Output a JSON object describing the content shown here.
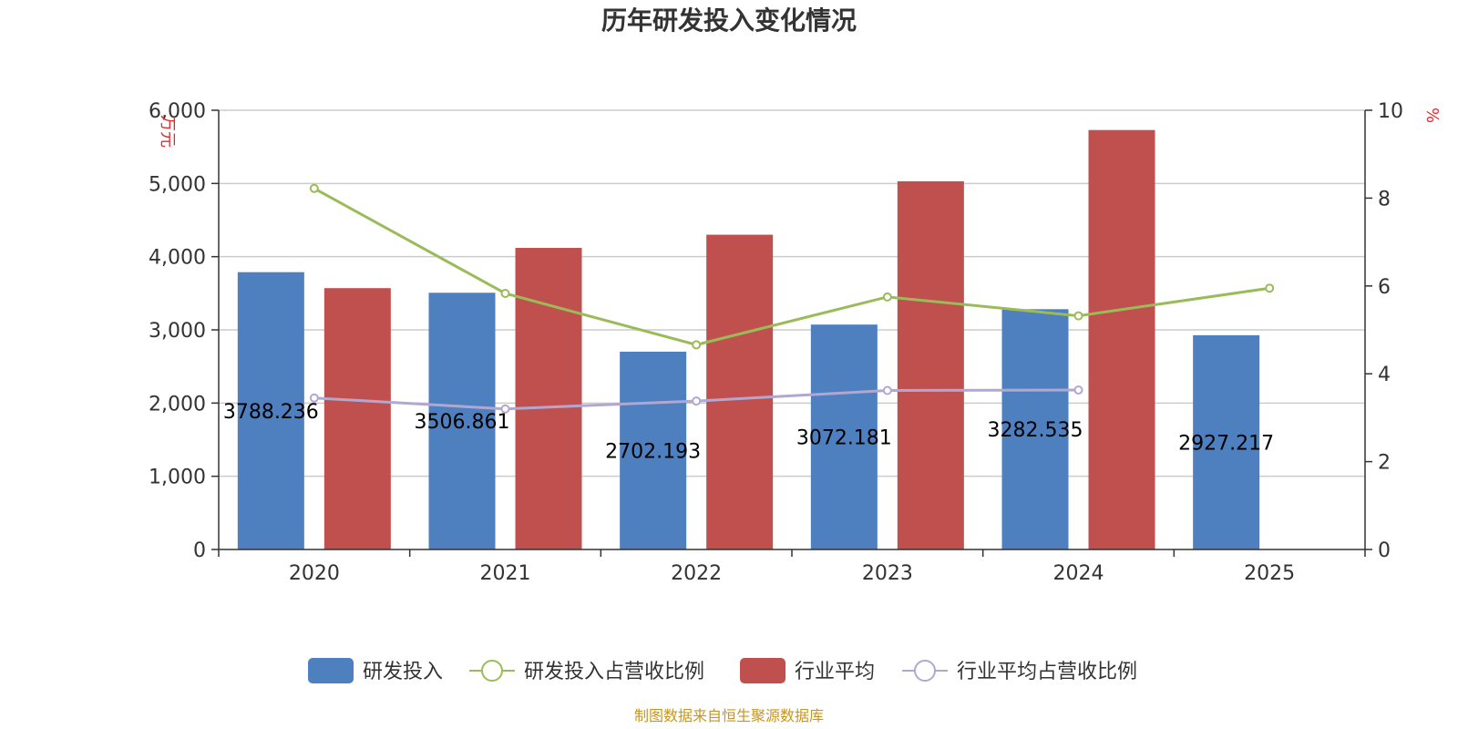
{
  "colors": {
    "rd_bar": "#4e7fbf",
    "industry_bar": "#c0504d",
    "rd_ratio_line": "#9bbb59",
    "industry_ratio_line": "#b1a7d1",
    "unit_text": "#e8262a",
    "source_text": "#c8961e"
  },
  "chart_data": {
    "type": "bar",
    "title": "历年研发投入变化情况",
    "categories": [
      "2020",
      "2021",
      "2022",
      "2023",
      "2024",
      "2025"
    ],
    "left_axis": {
      "unit": "万元",
      "min": 0,
      "max": 6000,
      "ticks": [
        0,
        1000,
        2000,
        3000,
        4000,
        5000,
        6000
      ],
      "tick_labels": [
        "0",
        "1,000",
        "2,000",
        "3,000",
        "4,000",
        "5,000",
        "6,000"
      ]
    },
    "right_axis": {
      "unit": "%",
      "min": 0,
      "max": 10,
      "ticks": [
        0,
        2,
        4,
        6,
        8,
        10
      ],
      "tick_labels": [
        "0",
        "2",
        "4",
        "6",
        "8",
        "10"
      ]
    },
    "series": [
      {
        "name": "研发投入",
        "kind": "bar",
        "axis": "left",
        "values": [
          3788.236,
          3506.861,
          2702.193,
          3072.181,
          3282.535,
          2927.217
        ],
        "labels": [
          "3788.236",
          "3506.861",
          "2702.193",
          "3072.181",
          "3282.535",
          "2927.217"
        ]
      },
      {
        "name": "研发投入占营收比例",
        "kind": "line",
        "axis": "right",
        "values": [
          8.22,
          5.83,
          4.66,
          5.75,
          5.32,
          5.95
        ]
      },
      {
        "name": "行业平均",
        "kind": "bar",
        "axis": "left",
        "values": [
          3570,
          4120,
          4300,
          5030,
          5730,
          null
        ]
      },
      {
        "name": "行业平均占营收比例",
        "kind": "line",
        "axis": "right",
        "values": [
          3.45,
          3.2,
          3.38,
          3.62,
          3.63,
          null
        ]
      }
    ]
  },
  "source_note": "制图数据来自恒生聚源数据库"
}
